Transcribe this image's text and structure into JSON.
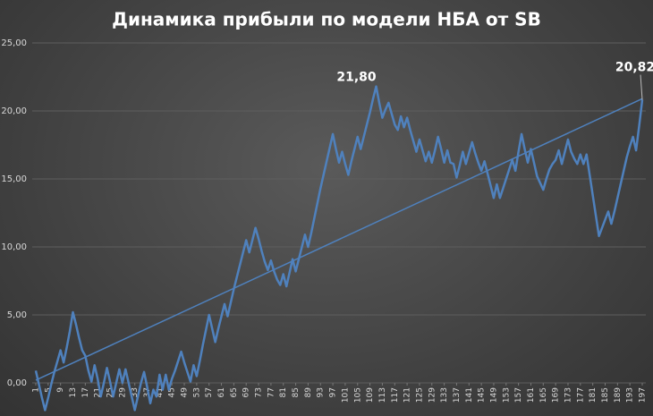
{
  "chart_data": {
    "type": "line",
    "title": "Динамика прибыли по модели НБА от SB",
    "x": [
      1,
      2,
      3,
      4,
      5,
      6,
      7,
      8,
      9,
      10,
      11,
      12,
      13,
      14,
      15,
      16,
      17,
      18,
      19,
      20,
      21,
      22,
      23,
      24,
      25,
      26,
      27,
      28,
      29,
      30,
      31,
      32,
      33,
      34,
      35,
      36,
      37,
      38,
      39,
      40,
      41,
      42,
      43,
      44,
      45,
      46,
      47,
      48,
      49,
      50,
      51,
      52,
      53,
      54,
      55,
      56,
      57,
      58,
      59,
      60,
      61,
      62,
      63,
      64,
      65,
      66,
      67,
      68,
      69,
      70,
      71,
      72,
      73,
      74,
      75,
      76,
      77,
      78,
      79,
      80,
      81,
      82,
      83,
      84,
      85,
      86,
      87,
      88,
      89,
      90,
      91,
      92,
      93,
      94,
      95,
      96,
      97,
      98,
      99,
      100,
      101,
      102,
      103,
      104,
      105,
      106,
      107,
      108,
      109,
      110,
      111,
      112,
      113,
      114,
      115,
      116,
      117,
      118,
      119,
      120,
      121,
      122,
      123,
      124,
      125,
      126,
      127,
      128,
      129,
      130,
      131,
      132,
      133,
      134,
      135,
      136,
      137,
      138,
      139,
      140,
      141,
      142,
      143,
      144,
      145,
      146,
      147,
      148,
      149,
      150,
      151,
      152,
      153,
      154,
      155,
      156,
      157,
      158,
      159,
      160,
      161,
      162,
      163,
      164,
      165,
      166,
      167,
      168,
      169,
      170,
      171,
      172,
      173,
      174,
      175,
      176,
      177,
      178,
      179,
      180,
      181,
      182,
      183,
      184,
      185,
      186,
      187,
      188,
      189,
      190,
      191,
      192,
      193,
      194,
      195,
      196,
      197
    ],
    "series": [
      {
        "color": "#4f81bd",
        "values": [
          0.9,
          -0.1,
          -1.1,
          -2.0,
          -1.1,
          -0.1,
          0.8,
          1.6,
          2.4,
          1.5,
          2.6,
          3.8,
          5.2,
          4.3,
          3.3,
          2.4,
          2.0,
          0.9,
          0.1,
          1.3,
          0.3,
          -1.0,
          0.0,
          1.1,
          0.1,
          -1.0,
          0.0,
          1.0,
          0.0,
          1.0,
          0.0,
          -1.0,
          -2.0,
          -1.0,
          0.0,
          0.8,
          -0.3,
          -1.5,
          -0.5,
          -1.0,
          0.6,
          -0.5,
          0.6,
          -0.5,
          0.3,
          0.9,
          1.6,
          2.3,
          1.5,
          0.8,
          0.1,
          1.3,
          0.5,
          1.6,
          2.8,
          3.9,
          5.0,
          4.0,
          3.0,
          4.0,
          4.9,
          5.8,
          4.9,
          5.9,
          6.9,
          7.8,
          8.7,
          9.6,
          10.5,
          9.6,
          10.5,
          11.4,
          10.6,
          9.7,
          8.9,
          8.3,
          9.0,
          8.2,
          7.6,
          7.2,
          8.0,
          7.1,
          8.1,
          9.1,
          8.2,
          9.1,
          10.0,
          10.9,
          10.0,
          11.0,
          12.1,
          13.2,
          14.3,
          15.3,
          16.3,
          17.3,
          18.3,
          17.2,
          16.2,
          17.0,
          16.1,
          15.3,
          16.3,
          17.2,
          18.1,
          17.2,
          18.1,
          19.0,
          19.9,
          20.9,
          21.8,
          20.6,
          19.5,
          20.1,
          20.6,
          19.8,
          19.0,
          18.6,
          19.6,
          18.8,
          19.5,
          18.6,
          17.8,
          17.0,
          17.9,
          17.1,
          16.3,
          17.0,
          16.2,
          17.1,
          18.1,
          17.2,
          16.2,
          17.1,
          16.2,
          16.1,
          15.1,
          16.0,
          17.0,
          16.1,
          16.9,
          17.7,
          16.9,
          16.2,
          15.6,
          16.3,
          15.4,
          14.5,
          13.6,
          14.6,
          13.6,
          14.3,
          15.0,
          15.7,
          16.4,
          15.6,
          17.0,
          18.3,
          17.2,
          16.2,
          17.2,
          16.2,
          15.2,
          14.7,
          14.2,
          15.0,
          15.7,
          16.1,
          16.4,
          17.1,
          16.1,
          17.0,
          17.9,
          17.0,
          16.5,
          16.1,
          16.8,
          16.1,
          16.8,
          15.3,
          13.8,
          12.3,
          10.8,
          11.4,
          12.0,
          12.6,
          11.7,
          12.6,
          13.6,
          14.6,
          15.6,
          16.6,
          17.4,
          18.1,
          17.1,
          18.9,
          20.82
        ]
      }
    ],
    "trend": {
      "x": [
        1,
        197
      ],
      "values": [
        0.2,
        20.9
      ],
      "color": "#4f81bd"
    },
    "annotations": [
      {
        "x": 111,
        "label": "21,80"
      },
      {
        "x": 197,
        "label": "20,82"
      }
    ],
    "xlim": [
      1,
      197
    ],
    "xticks": [
      1,
      5,
      9,
      13,
      17,
      21,
      25,
      29,
      33,
      37,
      41,
      45,
      49,
      53,
      57,
      61,
      65,
      69,
      73,
      77,
      81,
      85,
      89,
      93,
      97,
      101,
      105,
      109,
      113,
      117,
      121,
      125,
      129,
      133,
      137,
      141,
      145,
      149,
      153,
      157,
      161,
      165,
      169,
      173,
      177,
      181,
      185,
      189,
      193,
      197
    ],
    "ylim": [
      0,
      25
    ],
    "yticks": [
      {
        "value": 0,
        "label": "0,00"
      },
      {
        "value": 5,
        "label": "5,00"
      },
      {
        "value": 10,
        "label": "10,00"
      },
      {
        "value": 15,
        "label": "15,00"
      },
      {
        "value": 20,
        "label": "20,00"
      },
      {
        "value": 25,
        "label": "25,00"
      }
    ],
    "grid": true
  }
}
